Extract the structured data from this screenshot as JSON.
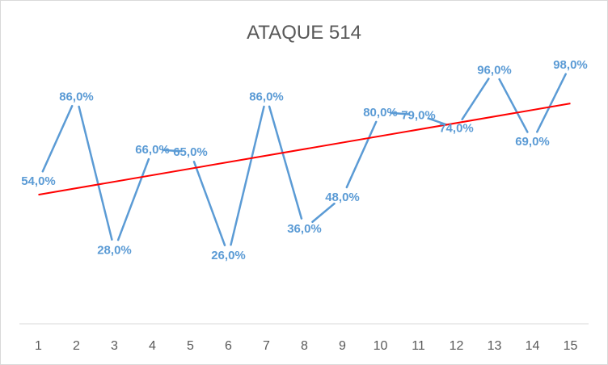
{
  "chart_data": {
    "type": "line",
    "title": "ATAQUE 514",
    "categories": [
      "1",
      "2",
      "3",
      "4",
      "5",
      "6",
      "7",
      "8",
      "9",
      "10",
      "11",
      "12",
      "13",
      "14",
      "15"
    ],
    "series": [
      {
        "values": [
          54,
          86,
          28,
          66,
          65,
          26,
          86,
          36,
          48,
          80,
          79,
          74,
          96,
          69,
          98
        ],
        "labels": [
          "54,0%",
          "86,0%",
          "28,0%",
          "66,0%",
          "65,0%",
          "26,0%",
          "86,0%",
          "36,0%",
          "48,0%",
          "80,0%",
          "79,0%",
          "74,0%",
          "96,0%",
          "69,0%",
          "98,0%"
        ],
        "color": "#5b9bd5",
        "marker": "none",
        "data_labels": true
      }
    ],
    "trendline": {
      "type": "linear",
      "color": "#ff0000"
    },
    "ylim": [
      0,
      120
    ],
    "y_axis_visible": false,
    "grid": false,
    "legend": "none"
  }
}
